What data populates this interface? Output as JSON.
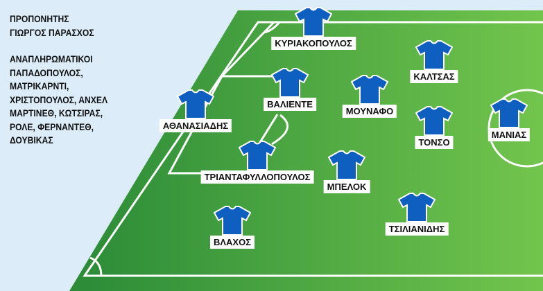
{
  "coach": {
    "title": "ΠΡΟΠΟΝΗΤΗΣ",
    "name": "ΓΙΩΡΓΟΣ ΠΑΡΑΣΧΟΣ"
  },
  "substitutes": {
    "title": "ΑΝΑΠΛΗΡΩΜΑΤΙΚΟΙ",
    "lines": [
      "ΠΑΠΑΔΟΠΟΥΛΟΣ,",
      "ΜΑΤΡΙΚΑΡΝΤΙ,",
      "ΧΡΙΣΤΟΠΟΥΛΟΣ, ΑΝΧΕΛ",
      "ΜΑΡΤΙΝΕΘ, ΚΩΤΣΙΡΑΣ,",
      "ΡΟΛΕ, ΦΕΡΝΑΝΤΕΘ,",
      "ΔΟΥΒΙΚΑΣ"
    ]
  },
  "colors": {
    "shirt": "#0f5fc0",
    "pitch_dark": "#2f8f3a",
    "pitch_light": "#6fc24c",
    "background": "#dcedf9"
  },
  "players": [
    {
      "name": "ΚΥΡΙΑΚΟΠΟΥΛΟΣ",
      "icon": "shirt-icon"
    },
    {
      "name": "ΚΑΛΤΣΑΣ",
      "icon": "shirt-icon"
    },
    {
      "name": "ΒΑΛΙΕΝΤΕ",
      "icon": "shirt-icon"
    },
    {
      "name": "ΜΟΥΝΑΦΟ",
      "icon": "shirt-icon"
    },
    {
      "name": "ΑΘΑΝΑΣΙΑΔΗΣ",
      "icon": "shirt-icon"
    },
    {
      "name": "ΤΟΝΣΟ",
      "icon": "shirt-icon"
    },
    {
      "name": "ΜΑΝΙΑΣ",
      "icon": "shirt-icon"
    },
    {
      "name": "ΤΡΙΑΝΤΑΦΥΛΛΟΠΟΥΛΟΣ",
      "icon": "shirt-icon"
    },
    {
      "name": "ΜΠΕΛΟΚ",
      "icon": "shirt-icon"
    },
    {
      "name": "ΤΣΙΛΙΑΝΙΔΗΣ",
      "icon": "shirt-icon"
    },
    {
      "name": "ΒΛΑΧΟΣ",
      "icon": "shirt-icon"
    }
  ]
}
